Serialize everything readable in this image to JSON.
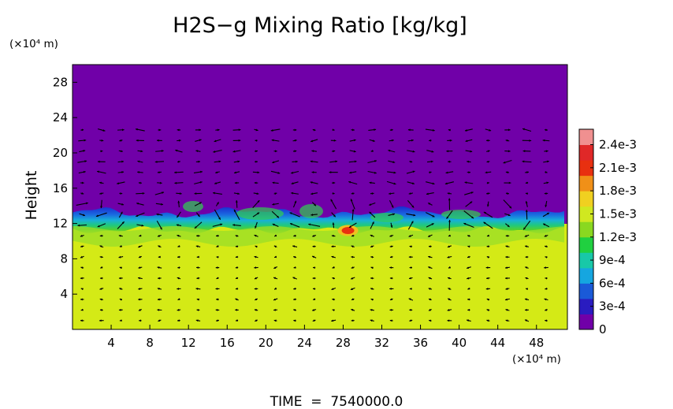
{
  "chart_data": {
    "type": "heatmap",
    "title": "H2S−g Mixing Ratio [kg/kg]",
    "xlabel": "",
    "x_unit": "(×10⁴ m)",
    "ylabel": "Height",
    "y_unit": "(×10⁴ m)",
    "xlim": [
      0,
      51.2
    ],
    "ylim": [
      0,
      30
    ],
    "x_ticks": [
      "4",
      "8",
      "12",
      "16",
      "20",
      "24",
      "28",
      "32",
      "36",
      "40",
      "44",
      "48"
    ],
    "y_ticks": [
      "4",
      "8",
      "12",
      "16",
      "20",
      "24",
      "28"
    ],
    "x_tick_values": [
      4,
      8,
      12,
      16,
      20,
      24,
      28,
      32,
      36,
      40,
      44,
      48
    ],
    "y_tick_values": [
      4,
      8,
      12,
      16,
      20,
      24,
      28
    ],
    "colorbar": {
      "labels": [
        "0",
        "3e-4",
        "6e-4",
        "9e-4",
        "1.2e-3",
        "1.5e-3",
        "1.8e-3",
        "2.1e-3",
        "2.4e-3"
      ],
      "values": [
        0,
        0.0003,
        0.0006,
        0.0009,
        0.0012,
        0.0015,
        0.0018,
        0.0021,
        0.0024
      ],
      "max": 0.0026,
      "colors": [
        "#7000a8",
        "#2a1cc0",
        "#1a5ad8",
        "#15a6e0",
        "#18c8a8",
        "#20d040",
        "#8ad820",
        "#d0e820",
        "#f0d020",
        "#f09018",
        "#e83010",
        "#e02828",
        "#f09090"
      ]
    },
    "field": {
      "lower_value": 0.00165,
      "upper_value": 0,
      "interface_height": 12.5,
      "hotspot": {
        "x": 28.5,
        "y": 11.2,
        "value": 0.0022
      }
    },
    "annotations": [
      "TIME  =  7540000.0"
    ],
    "grid": false,
    "legend": "colorbar-right"
  },
  "colors": {
    "purple": "#7000a8",
    "yellow_green": "#d4ea16",
    "arrow": "#000000"
  },
  "footer": {
    "time_label": "TIME  =  7540000.0"
  }
}
